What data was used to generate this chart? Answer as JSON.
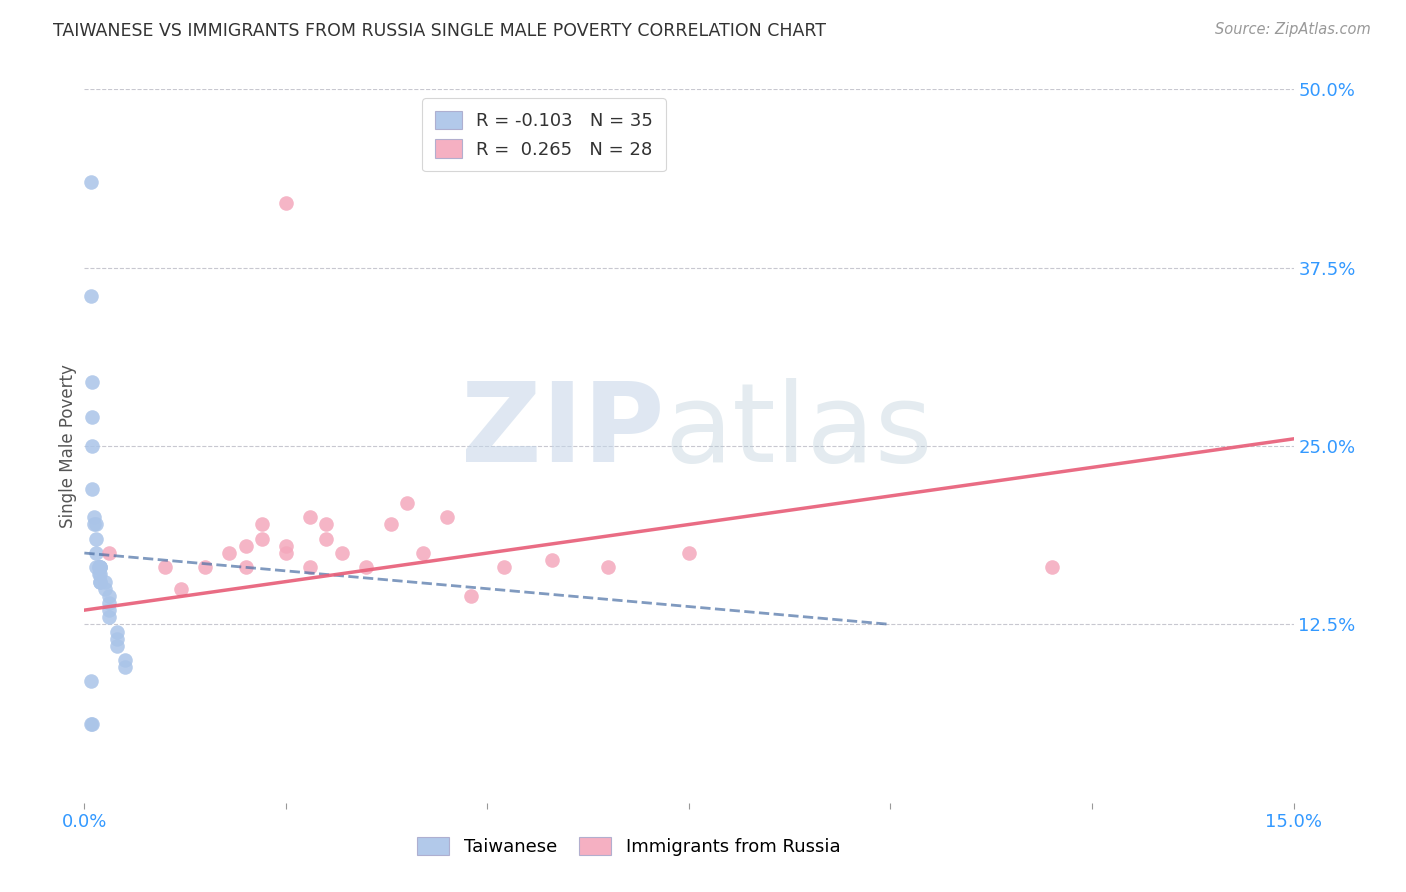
{
  "title": "TAIWANESE VS IMMIGRANTS FROM RUSSIA SINGLE MALE POVERTY CORRELATION CHART",
  "source": "Source: ZipAtlas.com",
  "ylabel_label": "Single Male Poverty",
  "xlim": [
    0.0,
    0.15
  ],
  "ylim": [
    0.0,
    0.5
  ],
  "xticks": [
    0.0,
    0.025,
    0.05,
    0.075,
    0.1,
    0.125,
    0.15
  ],
  "yticks": [
    0.0,
    0.125,
    0.25,
    0.375,
    0.5
  ],
  "ytick_labels": [
    "",
    "12.5%",
    "25.0%",
    "37.5%",
    "50.0%"
  ],
  "xtick_labels": [
    "0.0%",
    "",
    "",
    "",
    "",
    "",
    "15.0%"
  ],
  "background_color": "#ffffff",
  "grid_color": "#c8c8d0",
  "legend_R1": "-0.103",
  "legend_N1": "35",
  "legend_R2": "0.265",
  "legend_N2": "28",
  "taiwanese_color": "#aac4e8",
  "russian_color": "#f4a8bc",
  "trend_taiwan_color": "#4a6fa5",
  "trend_russia_color": "#e8607a",
  "taiwan_trend_x": [
    0.0,
    0.1
  ],
  "taiwan_trend_y": [
    0.175,
    0.125
  ],
  "russia_trend_x": [
    0.0,
    0.15
  ],
  "russia_trend_y": [
    0.135,
    0.255
  ],
  "taiwanese_x": [
    0.0008,
    0.0008,
    0.001,
    0.001,
    0.001,
    0.001,
    0.0012,
    0.0012,
    0.0015,
    0.0015,
    0.0015,
    0.0015,
    0.0018,
    0.0018,
    0.0018,
    0.002,
    0.002,
    0.002,
    0.002,
    0.002,
    0.002,
    0.0025,
    0.0025,
    0.003,
    0.003,
    0.003,
    0.003,
    0.004,
    0.004,
    0.004,
    0.005,
    0.005,
    0.0008,
    0.0008,
    0.001
  ],
  "taiwanese_y": [
    0.435,
    0.355,
    0.295,
    0.27,
    0.25,
    0.22,
    0.2,
    0.195,
    0.195,
    0.185,
    0.175,
    0.165,
    0.165,
    0.165,
    0.16,
    0.165,
    0.165,
    0.165,
    0.16,
    0.155,
    0.155,
    0.155,
    0.15,
    0.145,
    0.14,
    0.135,
    0.13,
    0.12,
    0.115,
    0.11,
    0.1,
    0.095,
    0.085,
    0.055,
    0.055
  ],
  "russian_x": [
    0.003,
    0.01,
    0.012,
    0.015,
    0.018,
    0.02,
    0.02,
    0.022,
    0.022,
    0.025,
    0.025,
    0.028,
    0.028,
    0.03,
    0.03,
    0.032,
    0.035,
    0.038,
    0.04,
    0.042,
    0.045,
    0.048,
    0.052,
    0.058,
    0.065,
    0.075,
    0.12,
    0.025
  ],
  "russian_y": [
    0.175,
    0.165,
    0.15,
    0.165,
    0.175,
    0.18,
    0.165,
    0.195,
    0.185,
    0.18,
    0.175,
    0.2,
    0.165,
    0.195,
    0.185,
    0.175,
    0.165,
    0.195,
    0.21,
    0.175,
    0.2,
    0.145,
    0.165,
    0.17,
    0.165,
    0.175,
    0.165,
    0.42
  ]
}
